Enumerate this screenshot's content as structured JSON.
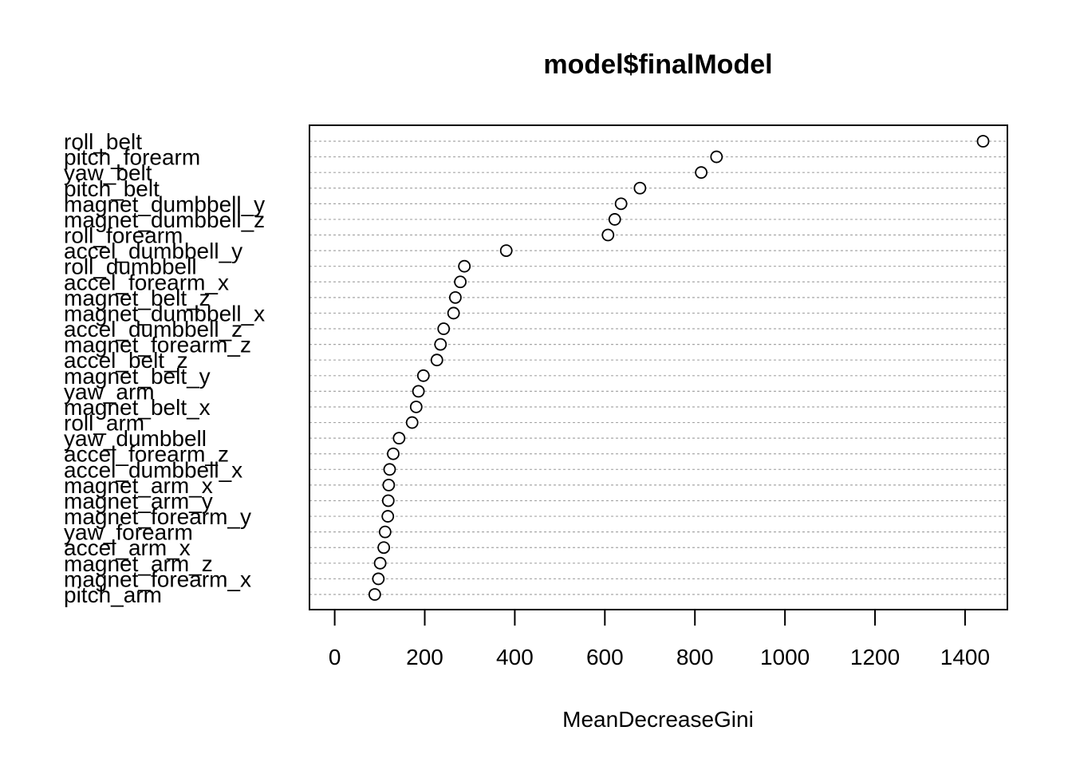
{
  "chart_data": {
    "type": "scatter",
    "title": "model$finalModel",
    "xlabel": "MeanDecreaseGini",
    "ylabel": "",
    "xlim": [
      -56,
      1494
    ],
    "xticks": [
      0,
      200,
      400,
      600,
      800,
      1000,
      1200,
      1400
    ],
    "grid": true,
    "grid_style": "dotted horizontal lines per category",
    "marker": "open circle",
    "categories": [
      "roll_belt",
      "pitch_forearm",
      "yaw_belt",
      "pitch_belt",
      "magnet_dumbbell_y",
      "magnet_dumbbell_z",
      "roll_forearm",
      "accel_dumbbell_y",
      "roll_dumbbell",
      "accel_forearm_x",
      "magnet_belt_z",
      "magnet_dumbbell_x",
      "accel_dumbbell_z",
      "magnet_forearm_z",
      "accel_belt_z",
      "magnet_belt_y",
      "yaw_arm",
      "magnet_belt_x",
      "roll_arm",
      "yaw_dumbbell",
      "accel_forearm_z",
      "accel_dumbbell_x",
      "magnet_arm_x",
      "magnet_arm_y",
      "magnet_forearm_y",
      "yaw_forearm",
      "accel_arm_x",
      "magnet_arm_z",
      "magnet_forearm_x",
      "pitch_arm"
    ],
    "values": [
      1440,
      848,
      814,
      678,
      636,
      622,
      607,
      381,
      288,
      279,
      268,
      264,
      242,
      235,
      227,
      197,
      186,
      181,
      172,
      143,
      130,
      122,
      120,
      119,
      118,
      112,
      109,
      101,
      97,
      89
    ]
  }
}
